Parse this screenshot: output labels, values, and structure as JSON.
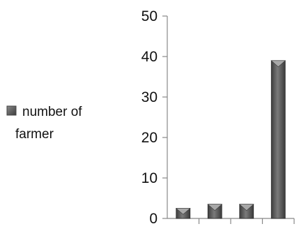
{
  "chart_data": {
    "type": "bar",
    "categories": [
      "",
      "",
      "",
      ""
    ],
    "series": [
      {
        "name": "number of farmer",
        "values": [
          2.5,
          3.5,
          3.5,
          39
        ]
      }
    ],
    "ylim": [
      0,
      50
    ],
    "y_ticks": [
      0,
      10,
      20,
      30,
      40,
      50
    ],
    "grid": false,
    "legend": {
      "position": "left",
      "label_line1": "number of",
      "label_line2": "farmer"
    },
    "bar_color": "#5a5a5a"
  }
}
